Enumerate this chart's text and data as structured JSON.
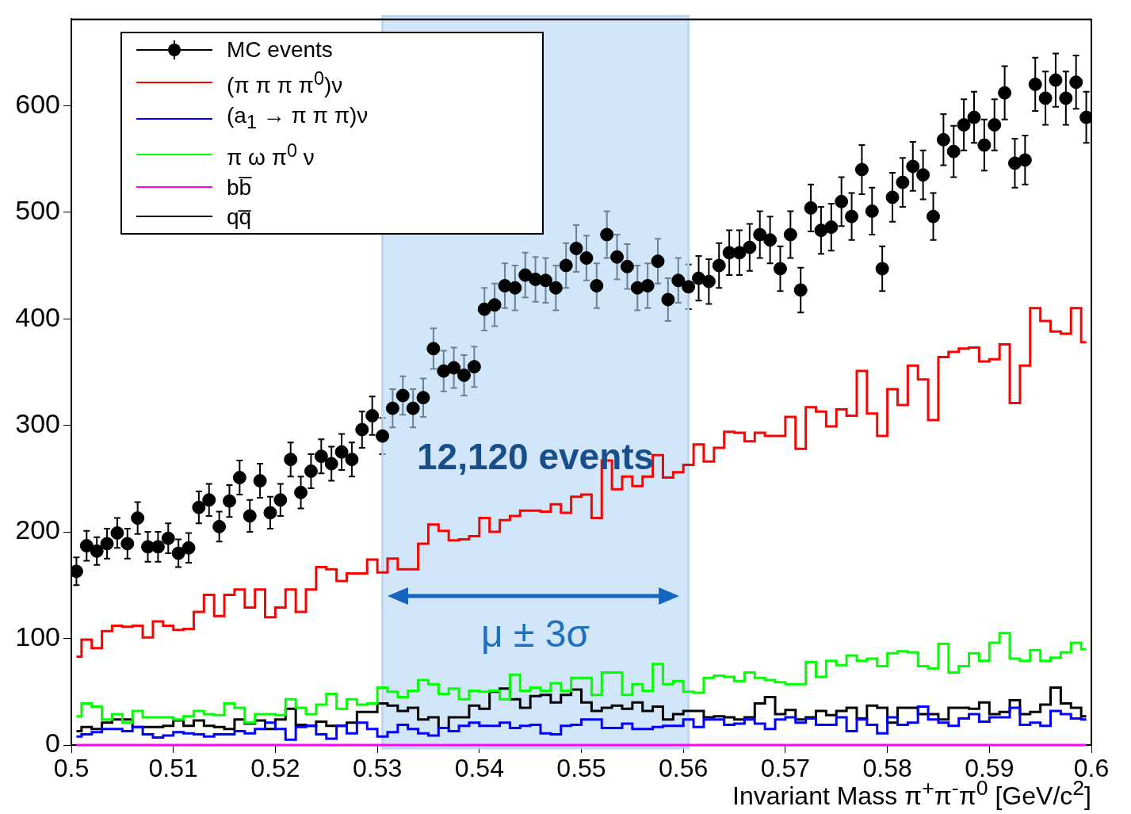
{
  "chart_data": {
    "type": "step",
    "xlabel": "Invariant Mass π$^{+}$π$^{-}$π$^{0}$ [GeV/c$^{2}$]",
    "legend": "top left",
    "xlim": [
      0.5,
      0.6
    ],
    "xticks": [
      0.5,
      0.51,
      0.52,
      0.53,
      0.54,
      0.55,
      0.56,
      0.57,
      0.58,
      0.59,
      0.6
    ],
    "ylim": [
      0,
      681
    ],
    "yticks": [
      0,
      100,
      200,
      300,
      400,
      500,
      600
    ],
    "x": [
      0.5005,
      0.5015,
      0.5025,
      0.5035,
      0.5045,
      0.5055,
      0.5065,
      0.5075,
      0.5085,
      0.5095,
      0.5105,
      0.5115,
      0.5125,
      0.5135,
      0.5145,
      0.5155,
      0.5165,
      0.5175,
      0.5185,
      0.5195,
      0.5205,
      0.5215,
      0.5225,
      0.5235,
      0.5245,
      0.5255,
      0.5265,
      0.5275,
      0.5285,
      0.5295,
      0.5305,
      0.5315,
      0.5325,
      0.5335,
      0.5345,
      0.5355,
      0.5365,
      0.5375,
      0.5385,
      0.5395,
      0.5405,
      0.5415,
      0.5425,
      0.5435,
      0.5445,
      0.5455,
      0.5465,
      0.5475,
      0.5485,
      0.5495,
      0.5505,
      0.5515,
      0.5525,
      0.5535,
      0.5545,
      0.5555,
      0.5565,
      0.5575,
      0.5585,
      0.5595,
      0.5605,
      0.5615,
      0.5625,
      0.5635,
      0.5645,
      0.5655,
      0.5665,
      0.5675,
      0.5685,
      0.5695,
      0.5705,
      0.5715,
      0.5725,
      0.5735,
      0.5745,
      0.5755,
      0.5765,
      0.5775,
      0.5785,
      0.5795,
      0.5805,
      0.5815,
      0.5825,
      0.5835,
      0.5845,
      0.5855,
      0.5865,
      0.5875,
      0.5885,
      0.5895,
      0.5905,
      0.5915,
      0.5925,
      0.5935,
      0.5945,
      0.5955,
      0.5965,
      0.5975,
      0.5985,
      0.5995
    ],
    "series": [
      {
        "name": "MC events",
        "type": "scatter",
        "marker": "circle",
        "color": "#000000",
        "values": [
          163,
          187,
          182,
          189,
          199,
          189,
          213,
          186,
          186,
          194,
          180,
          185,
          223,
          230,
          205,
          229,
          251,
          215,
          248,
          218,
          230,
          268,
          237,
          257,
          271,
          264,
          275,
          268,
          296,
          309,
          290,
          316,
          328,
          316,
          326,
          372,
          351,
          354,
          347,
          355,
          409,
          413,
          431,
          429,
          441,
          437,
          436,
          429,
          450,
          466,
          457,
          431,
          479,
          458,
          449,
          429,
          431,
          454,
          418,
          436,
          430,
          438,
          435,
          450,
          462,
          462,
          467,
          479,
          474,
          447,
          479,
          427,
          504,
          483,
          486,
          510,
          496,
          540,
          501,
          447,
          514,
          528,
          543,
          535,
          496,
          568,
          557,
          582,
          589,
          563,
          582,
          612,
          546,
          549,
          620,
          607,
          624,
          607,
          622,
          589
        ],
        "errors": [
          13,
          14,
          13,
          14,
          14,
          14,
          15,
          14,
          14,
          14,
          13,
          14,
          15,
          15,
          14,
          15,
          16,
          15,
          16,
          15,
          15,
          16,
          15,
          16,
          16,
          16,
          17,
          16,
          17,
          18,
          17,
          18,
          18,
          18,
          18,
          19,
          19,
          19,
          19,
          19,
          20,
          20,
          21,
          21,
          21,
          21,
          21,
          21,
          21,
          22,
          21,
          21,
          22,
          21,
          21,
          21,
          21,
          21,
          20,
          21,
          21,
          21,
          21,
          21,
          21,
          21,
          22,
          22,
          22,
          21,
          22,
          21,
          22,
          22,
          22,
          23,
          22,
          23,
          22,
          21,
          23,
          23,
          23,
          23,
          22,
          24,
          24,
          24,
          24,
          24,
          24,
          25,
          23,
          23,
          25,
          25,
          25,
          25,
          25,
          24
        ]
      },
      {
        "name": "(π π π π$^{0}$)ν",
        "color": "#ff0000",
        "values": [
          83,
          99,
          91,
          107,
          112,
          111,
          112,
          101,
          116,
          112,
          108,
          109,
          125,
          141,
          121,
          141,
          146,
          129,
          146,
          120,
          129,
          146,
          125,
          146,
          167,
          165,
          154,
          161,
          161,
          174,
          162,
          175,
          165,
          165,
          189,
          207,
          201,
          192,
          193,
          196,
          213,
          200,
          211,
          215,
          220,
          220,
          219,
          226,
          218,
          233,
          235,
          213,
          267,
          240,
          252,
          243,
          252,
          272,
          251,
          256,
          263,
          282,
          266,
          279,
          294,
          293,
          285,
          293,
          290,
          290,
          308,
          278,
          317,
          313,
          299,
          315,
          309,
          351,
          311,
          290,
          334,
          319,
          356,
          343,
          305,
          364,
          369,
          372,
          373,
          360,
          362,
          376,
          321,
          356,
          410,
          398,
          388,
          386,
          410,
          378
        ]
      },
      {
        "name": "(a$_{1}$ → π π π)ν",
        "color": "#0000ff",
        "values": [
          8,
          10,
          12,
          15,
          15,
          13,
          17,
          10,
          7,
          9,
          12,
          11,
          10,
          8,
          10,
          10,
          13,
          11,
          15,
          21,
          15,
          5,
          17,
          18,
          10,
          6,
          18,
          11,
          21,
          15,
          8,
          12,
          19,
          15,
          11,
          9,
          16,
          13,
          18,
          21,
          18,
          18,
          21,
          16,
          18,
          19,
          11,
          10,
          18,
          19,
          24,
          24,
          16,
          16,
          20,
          15,
          15,
          17,
          18,
          18,
          24,
          17,
          24,
          24,
          19,
          20,
          24,
          20,
          15,
          24,
          26,
          21,
          25,
          19,
          19,
          26,
          13,
          24,
          19,
          11,
          26,
          19,
          21,
          36,
          24,
          21,
          18,
          25,
          29,
          22,
          26,
          26,
          35,
          19,
          21,
          18,
          32,
          29,
          25,
          24
        ]
      },
      {
        "name": "π ω π$^{0}$ ν",
        "color": "#00ff00",
        "values": [
          27,
          39,
          36,
          24,
          29,
          21,
          32,
          26,
          26,
          26,
          24,
          27,
          32,
          29,
          28,
          39,
          35,
          21,
          29,
          29,
          28,
          43,
          35,
          29,
          38,
          48,
          34,
          43,
          38,
          39,
          54,
          50,
          45,
          51,
          61,
          57,
          48,
          53,
          43,
          51,
          50,
          51,
          43,
          66,
          51,
          54,
          51,
          58,
          51,
          63,
          63,
          47,
          68,
          68,
          47,
          57,
          51,
          76,
          57,
          60,
          50,
          49,
          63,
          65,
          64,
          60,
          68,
          63,
          61,
          59,
          57,
          57,
          78,
          64,
          79,
          75,
          84,
          79,
          81,
          74,
          86,
          88,
          87,
          74,
          72,
          95,
          68,
          74,
          86,
          79,
          96,
          105,
          81,
          79,
          89,
          79,
          82,
          87,
          96,
          90
        ]
      },
      {
        "name": "bb̅",
        "color": "#ff00ff",
        "values": [
          0,
          0,
          0,
          0,
          0,
          0,
          0,
          0,
          0,
          0,
          0,
          0,
          0,
          0,
          0,
          0,
          0,
          0,
          0,
          0,
          0,
          0,
          0,
          0,
          0,
          0,
          0,
          0,
          0,
          0,
          0,
          0,
          0,
          0,
          0,
          0,
          0,
          0,
          0,
          0,
          0,
          0,
          0,
          0,
          0,
          0,
          0,
          0,
          0,
          0,
          0,
          0,
          0,
          0,
          0,
          0,
          0,
          0,
          0,
          0,
          0,
          0,
          0,
          0,
          0,
          0,
          0,
          0,
          0,
          0,
          0,
          0,
          0,
          0,
          0,
          0,
          0,
          0,
          0,
          0,
          0,
          0,
          0,
          0,
          0,
          0,
          0,
          0,
          0,
          0,
          0,
          0,
          0,
          0,
          0,
          0,
          0,
          0,
          0,
          0
        ]
      },
      {
        "name": "qq̅",
        "color": "#000000",
        "values": [
          13,
          17,
          15,
          21,
          24,
          24,
          17,
          17,
          17,
          18,
          23,
          18,
          23,
          18,
          17,
          15,
          24,
          20,
          23,
          15,
          24,
          34,
          19,
          18,
          22,
          18,
          18,
          21,
          31,
          31,
          39,
          37,
          32,
          35,
          24,
          26,
          16,
          26,
          26,
          37,
          34,
          50,
          53,
          43,
          35,
          46,
          47,
          40,
          47,
          52,
          40,
          32,
          35,
          37,
          34,
          40,
          32,
          36,
          24,
          29,
          32,
          32,
          26,
          27,
          26,
          24,
          26,
          39,
          45,
          29,
          33,
          24,
          26,
          32,
          28,
          32,
          35,
          25,
          37,
          35,
          21,
          35,
          35,
          29,
          29,
          24,
          35,
          35,
          34,
          40,
          29,
          31,
          42,
          29,
          31,
          38,
          54,
          39,
          35,
          27
        ]
      }
    ],
    "bands": [
      {
        "axis": "x",
        "from": 0.5305,
        "to": 0.5605,
        "color": "#b4d6f7"
      }
    ],
    "annotations": [
      "12,120 events",
      "μ ± 3σ"
    ]
  }
}
